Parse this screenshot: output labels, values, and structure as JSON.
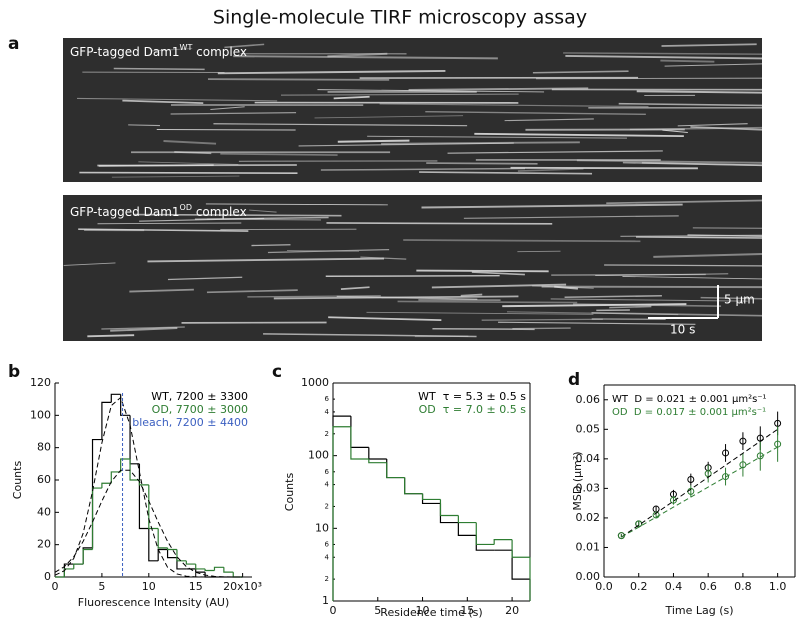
{
  "title": "Single-molecule TIRF microscopy assay",
  "panel_labels": [
    "a",
    "b",
    "c",
    "d"
  ],
  "kymographs": [
    {
      "label": "GFP-tagged Dam1",
      "label_sup": "WT",
      "label_end": " complex"
    },
    {
      "label": "GFP-tagged Dam1",
      "label_sup": "OD",
      "label_end": " complex"
    }
  ],
  "scale_bars": {
    "vertical": "5 μm",
    "horizontal": "10 s"
  },
  "chart_data": [
    {
      "type": "histogram",
      "xlabel": "Fluorescence Intensity (AU)",
      "ylabel": "Counts",
      "bins": [
        0,
        1,
        2,
        3,
        4,
        5,
        6,
        7,
        8,
        9,
        10,
        11,
        12,
        13,
        14,
        15,
        16,
        17,
        18,
        19,
        20
      ],
      "series": [
        {
          "name": "WT, 7200 ± 3300",
          "color": "#000000",
          "values": [
            0,
            8,
            8,
            18,
            85,
            108,
            113,
            100,
            70,
            30,
            10,
            17,
            12,
            5,
            5,
            3,
            0,
            0,
            0,
            0
          ]
        },
        {
          "name": "OD, 7700 ± 3000",
          "color": "#2e7d32",
          "values": [
            0,
            5,
            8,
            17,
            55,
            58,
            65,
            73,
            60,
            57,
            30,
            18,
            17,
            10,
            8,
            5,
            4,
            6,
            3,
            0
          ]
        }
      ],
      "fits": [
        {
          "color": "#000000",
          "x": [
            0,
            1,
            2,
            3,
            4,
            5,
            6,
            7,
            8,
            9,
            10,
            11,
            12,
            13,
            14,
            15,
            16,
            17,
            18,
            19,
            20
          ],
          "values": [
            1.1,
            3.9,
            11.5,
            27,
            53,
            83,
            106,
            111,
            94,
            65,
            36,
            17,
            6,
            1.9,
            0.5,
            0.1,
            0,
            0,
            0,
            0,
            0
          ]
        },
        {
          "color": "#000000",
          "x": [
            0,
            1,
            2,
            3,
            4,
            5,
            6,
            7,
            8,
            9,
            10,
            11,
            12,
            13,
            14,
            15,
            16,
            17,
            18,
            19,
            20
          ],
          "values": [
            2.9,
            6.4,
            12.5,
            22,
            34,
            47,
            59,
            66,
            66,
            59,
            47,
            34,
            22,
            12.5,
            6.4,
            2.9,
            1.2,
            0.4,
            0.1,
            0,
            0
          ]
        }
      ],
      "vline": {
        "value": 7.2,
        "color": "#3b5fc0",
        "label": "bleach, 7200 ± 4400"
      },
      "xlim": [
        0,
        21
      ],
      "xticks": [
        0,
        5,
        10,
        15,
        {
          "value": 20,
          "label": "20x10³"
        }
      ],
      "ylim": [
        0,
        120
      ],
      "yticks": [
        0,
        20,
        40,
        60,
        80,
        100,
        120
      ],
      "legend": "upper right"
    },
    {
      "type": "histogram",
      "xlabel": "Residence time (s)",
      "ylabel": "Counts",
      "log_y": true,
      "bins": [
        0,
        2,
        4,
        6,
        8,
        10,
        12,
        14,
        16,
        18,
        20,
        22
      ],
      "series": [
        {
          "name": "WT  τ = 5.3 ± 0.5 s",
          "color": "#000000",
          "values": [
            350,
            130,
            90,
            50,
            30,
            22,
            12,
            8,
            5,
            5,
            2
          ]
        },
        {
          "name": "OD  τ = 7.0 ± 0.5 s",
          "color": "#2e7d32",
          "values": [
            250,
            90,
            80,
            50,
            30,
            25,
            15,
            12,
            6,
            7,
            4
          ]
        }
      ],
      "xlim": [
        0,
        22
      ],
      "xticks": [
        0,
        5,
        10,
        15,
        20
      ],
      "ylim": [
        1,
        1000
      ],
      "yticks": [
        1,
        2,
        4,
        6,
        10,
        {
          "value": 20,
          "label": "2"
        },
        {
          "value": 40,
          "label": "4"
        },
        {
          "value": 60,
          "label": "6"
        },
        100,
        {
          "value": 200,
          "label": "2"
        },
        {
          "value": 400,
          "label": "4"
        },
        {
          "value": 600,
          "label": "6"
        },
        1000
      ],
      "legend": "upper right"
    },
    {
      "type": "scatter",
      "xlabel": "Time Lag (s)",
      "ylabel": "MSD (μm²)",
      "x": [
        0.1,
        0.2,
        0.3,
        0.4,
        0.5,
        0.6,
        0.7,
        0.8,
        0.9,
        1.0
      ],
      "series": [
        {
          "name": "WT  D = 0.021 ± 0.001 μm²s⁻¹",
          "color": "#000000",
          "values": [
            0.014,
            0.018,
            0.023,
            0.028,
            0.033,
            0.037,
            0.042,
            0.046,
            0.047,
            0.052
          ],
          "errors": [
            0.0005,
            0.001,
            0.001,
            0.0015,
            0.002,
            0.002,
            0.003,
            0.003,
            0.004,
            0.004
          ]
        },
        {
          "name": "OD  D = 0.017 ± 0.001 μm²s⁻¹",
          "color": "#2e7d32",
          "values": [
            0.014,
            0.018,
            0.021,
            0.026,
            0.029,
            0.035,
            0.034,
            0.038,
            0.041,
            0.045
          ],
          "errors": [
            0.0005,
            0.001,
            0.001,
            0.0015,
            0.002,
            0.003,
            0.003,
            0.004,
            0.005,
            0.006
          ]
        }
      ],
      "fits": [
        {
          "color": "#000000",
          "x": [
            0.1,
            1.0
          ],
          "values": [
            0.0135,
            0.05
          ]
        },
        {
          "color": "#2e7d32",
          "x": [
            0.1,
            1.0
          ],
          "values": [
            0.0135,
            0.044
          ]
        }
      ],
      "xlim": [
        0,
        1.1
      ],
      "xticks": [
        {
          "value": 0,
          "label": "0.0"
        },
        0.2,
        0.4,
        0.6,
        0.8,
        {
          "value": 1,
          "label": "1.0"
        }
      ],
      "ylim": [
        0,
        0.065
      ],
      "yticks": [
        {
          "value": 0,
          "label": "0.00"
        },
        0.01,
        0.02,
        0.03,
        0.04,
        0.05,
        0.06
      ],
      "legend": "upper left"
    }
  ]
}
